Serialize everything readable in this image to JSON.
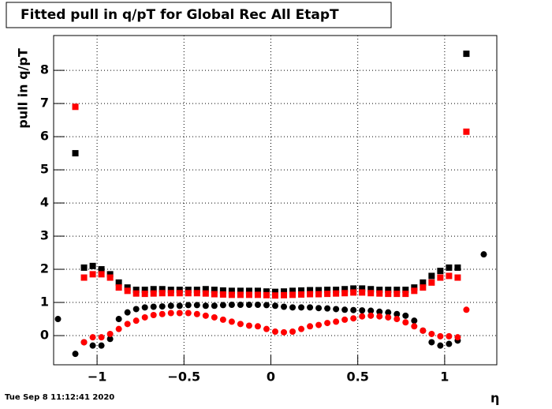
{
  "chart_data": {
    "type": "scatter",
    "title": "Fitted pull in q/pT for Global Rec All EtapT",
    "y_label": "pull in q/pT",
    "x_label": "η",
    "timestamp": "Tue Sep  8 11:12:41 2020",
    "x": [
      -1.225,
      -1.175,
      -1.125,
      -1.075,
      -1.025,
      -0.975,
      -0.925,
      -0.875,
      -0.825,
      -0.775,
      -0.725,
      -0.675,
      -0.625,
      -0.575,
      -0.525,
      -0.475,
      -0.425,
      -0.375,
      -0.325,
      -0.275,
      -0.225,
      -0.175,
      -0.125,
      -0.075,
      -0.025,
      0.025,
      0.075,
      0.125,
      0.175,
      0.225,
      0.275,
      0.325,
      0.375,
      0.425,
      0.475,
      0.525,
      0.575,
      0.625,
      0.675,
      0.725,
      0.775,
      0.825,
      0.875,
      0.925,
      0.975,
      1.025,
      1.075,
      1.125,
      1.175,
      1.225
    ],
    "series": [
      {
        "color": "#000000",
        "marker": "square",
        "values": [
          null,
          null,
          5.5,
          2.05,
          2.1,
          2.0,
          1.85,
          1.6,
          1.45,
          1.38,
          1.38,
          1.4,
          1.4,
          1.38,
          1.38,
          1.38,
          1.38,
          1.4,
          1.38,
          1.36,
          1.35,
          1.35,
          1.35,
          1.35,
          1.33,
          1.32,
          1.33,
          1.35,
          1.36,
          1.37,
          1.37,
          1.38,
          1.38,
          1.4,
          1.42,
          1.42,
          1.4,
          1.38,
          1.38,
          1.38,
          1.38,
          1.45,
          1.6,
          1.8,
          1.95,
          2.05,
          2.05,
          8.5,
          null,
          null
        ]
      },
      {
        "color": "#ff0000",
        "marker": "square",
        "values": [
          null,
          null,
          6.9,
          1.75,
          1.85,
          1.85,
          1.75,
          1.45,
          1.35,
          1.27,
          1.26,
          1.27,
          1.28,
          1.28,
          1.28,
          1.28,
          1.28,
          1.27,
          1.25,
          1.24,
          1.23,
          1.23,
          1.23,
          1.23,
          1.22,
          1.21,
          1.22,
          1.23,
          1.24,
          1.25,
          1.25,
          1.26,
          1.27,
          1.28,
          1.3,
          1.3,
          1.28,
          1.27,
          1.26,
          1.26,
          1.26,
          1.35,
          1.45,
          1.6,
          1.75,
          1.8,
          1.75,
          6.15,
          null,
          null
        ]
      },
      {
        "color": "#000000",
        "marker": "circle",
        "values": [
          0.5,
          null,
          -0.55,
          -0.2,
          -0.3,
          -0.3,
          -0.1,
          0.5,
          0.7,
          0.8,
          0.85,
          0.87,
          0.88,
          0.9,
          0.9,
          0.92,
          0.92,
          0.9,
          0.9,
          0.92,
          0.93,
          0.93,
          0.93,
          0.93,
          0.92,
          0.9,
          0.87,
          0.85,
          0.85,
          0.85,
          0.83,
          0.82,
          0.8,
          0.78,
          0.77,
          0.76,
          0.75,
          0.72,
          0.7,
          0.65,
          0.6,
          0.45,
          0.15,
          -0.2,
          -0.3,
          -0.25,
          -0.15,
          null,
          null,
          2.45
        ]
      },
      {
        "color": "#ff0000",
        "marker": "circle",
        "values": [
          null,
          null,
          null,
          -0.2,
          -0.05,
          -0.05,
          0.05,
          0.2,
          0.35,
          0.45,
          0.55,
          0.62,
          0.65,
          0.68,
          0.68,
          0.68,
          0.65,
          0.6,
          0.55,
          0.48,
          0.42,
          0.35,
          0.3,
          0.28,
          0.2,
          0.12,
          0.1,
          0.12,
          0.2,
          0.28,
          0.32,
          0.38,
          0.42,
          0.48,
          0.52,
          0.58,
          0.6,
          0.58,
          0.55,
          0.5,
          0.4,
          0.28,
          0.15,
          0.05,
          -0.02,
          -0.02,
          -0.05,
          0.78,
          null,
          null
        ]
      }
    ],
    "xlim": [
      -1.25,
      1.3
    ],
    "ylim": [
      -0.88,
      9.05
    ],
    "xticks": [
      {
        "value": -1,
        "label": "−1"
      },
      {
        "value": -0.5,
        "label": "−0.5"
      },
      0,
      0.5,
      1
    ],
    "yticks": [
      0,
      1,
      2,
      3,
      4,
      5,
      6,
      7,
      8
    ],
    "grid": true
  }
}
